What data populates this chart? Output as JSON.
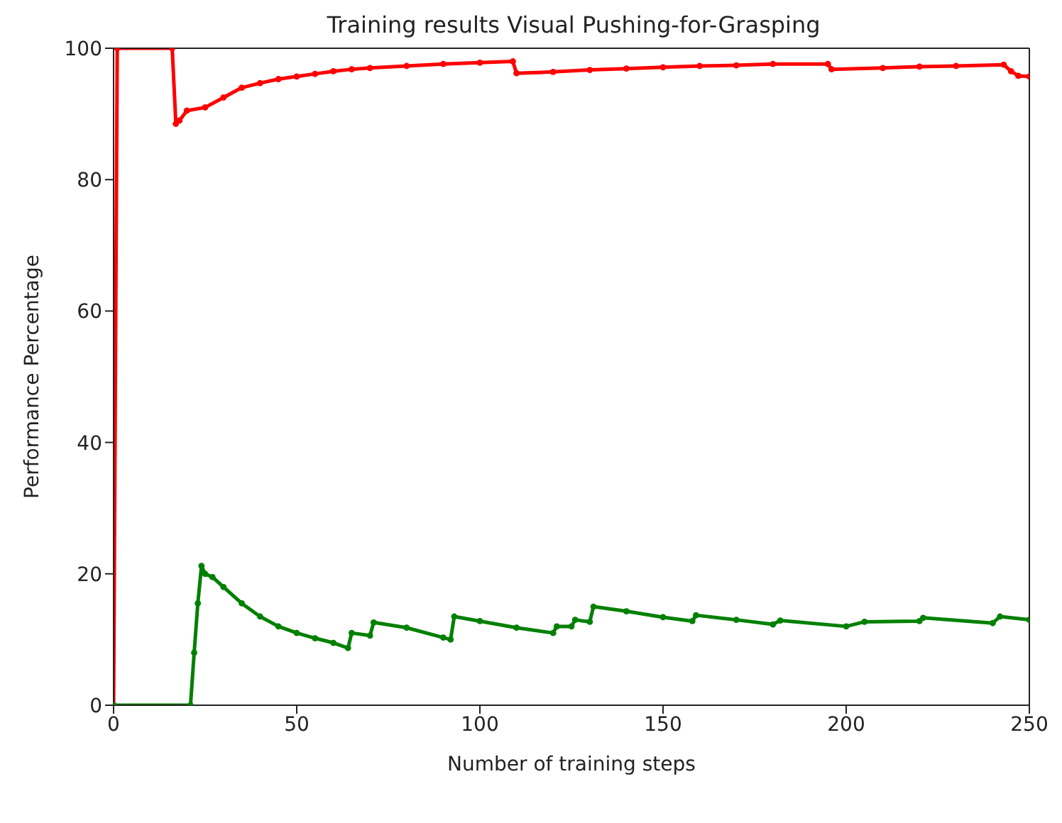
{
  "chart_data": {
    "type": "line",
    "title": "Training results Visual Pushing-for-Grasping",
    "xlabel": "Number of training steps",
    "ylabel": "Performance Percentage",
    "xlim": [
      0,
      250
    ],
    "xticks": [
      0,
      50,
      100,
      150,
      200,
      250
    ],
    "ylim": [
      0,
      100
    ],
    "yticks": [
      0,
      20,
      40,
      60,
      80,
      100
    ],
    "grid": false,
    "marker": "circle",
    "line_style": "solid",
    "series": [
      {
        "color": "#ff0000",
        "x": [
          0,
          1,
          16,
          17,
          18,
          20,
          25,
          30,
          35,
          40,
          45,
          50,
          55,
          60,
          65,
          70,
          80,
          90,
          100,
          109,
          110,
          120,
          130,
          140,
          150,
          160,
          170,
          180,
          195,
          196,
          210,
          220,
          230,
          243,
          245,
          247,
          250
        ],
        "values": [
          0,
          100,
          100,
          88.5,
          89,
          90.5,
          91,
          92.5,
          94,
          94.7,
          95.3,
          95.7,
          96.1,
          96.5,
          96.8,
          97,
          97.3,
          97.6,
          97.8,
          98,
          96.2,
          96.4,
          96.7,
          96.9,
          97.1,
          97.3,
          97.4,
          97.6,
          97.6,
          96.8,
          97,
          97.2,
          97.3,
          97.5,
          96.5,
          95.8,
          95.7
        ]
      },
      {
        "color": "#008000",
        "x": [
          0,
          21,
          22,
          23,
          24,
          25,
          27,
          30,
          35,
          40,
          45,
          50,
          55,
          60,
          64,
          65,
          70,
          71,
          80,
          90,
          92,
          93,
          100,
          110,
          120,
          121,
          125,
          126,
          130,
          131,
          140,
          150,
          158,
          159,
          170,
          180,
          182,
          200,
          205,
          220,
          221,
          240,
          242,
          250
        ],
        "values": [
          0,
          0,
          8,
          15.5,
          21.2,
          20,
          19.5,
          18,
          15.5,
          13.5,
          12,
          11,
          10.2,
          9.5,
          8.7,
          11,
          10.6,
          12.6,
          11.8,
          10.3,
          10,
          13.5,
          12.8,
          11.8,
          11,
          12,
          12,
          13,
          12.7,
          15,
          14.3,
          13.4,
          12.8,
          13.7,
          13,
          12.3,
          12.9,
          12,
          12.7,
          12.8,
          13.3,
          12.5,
          13.5,
          13
        ]
      }
    ]
  }
}
